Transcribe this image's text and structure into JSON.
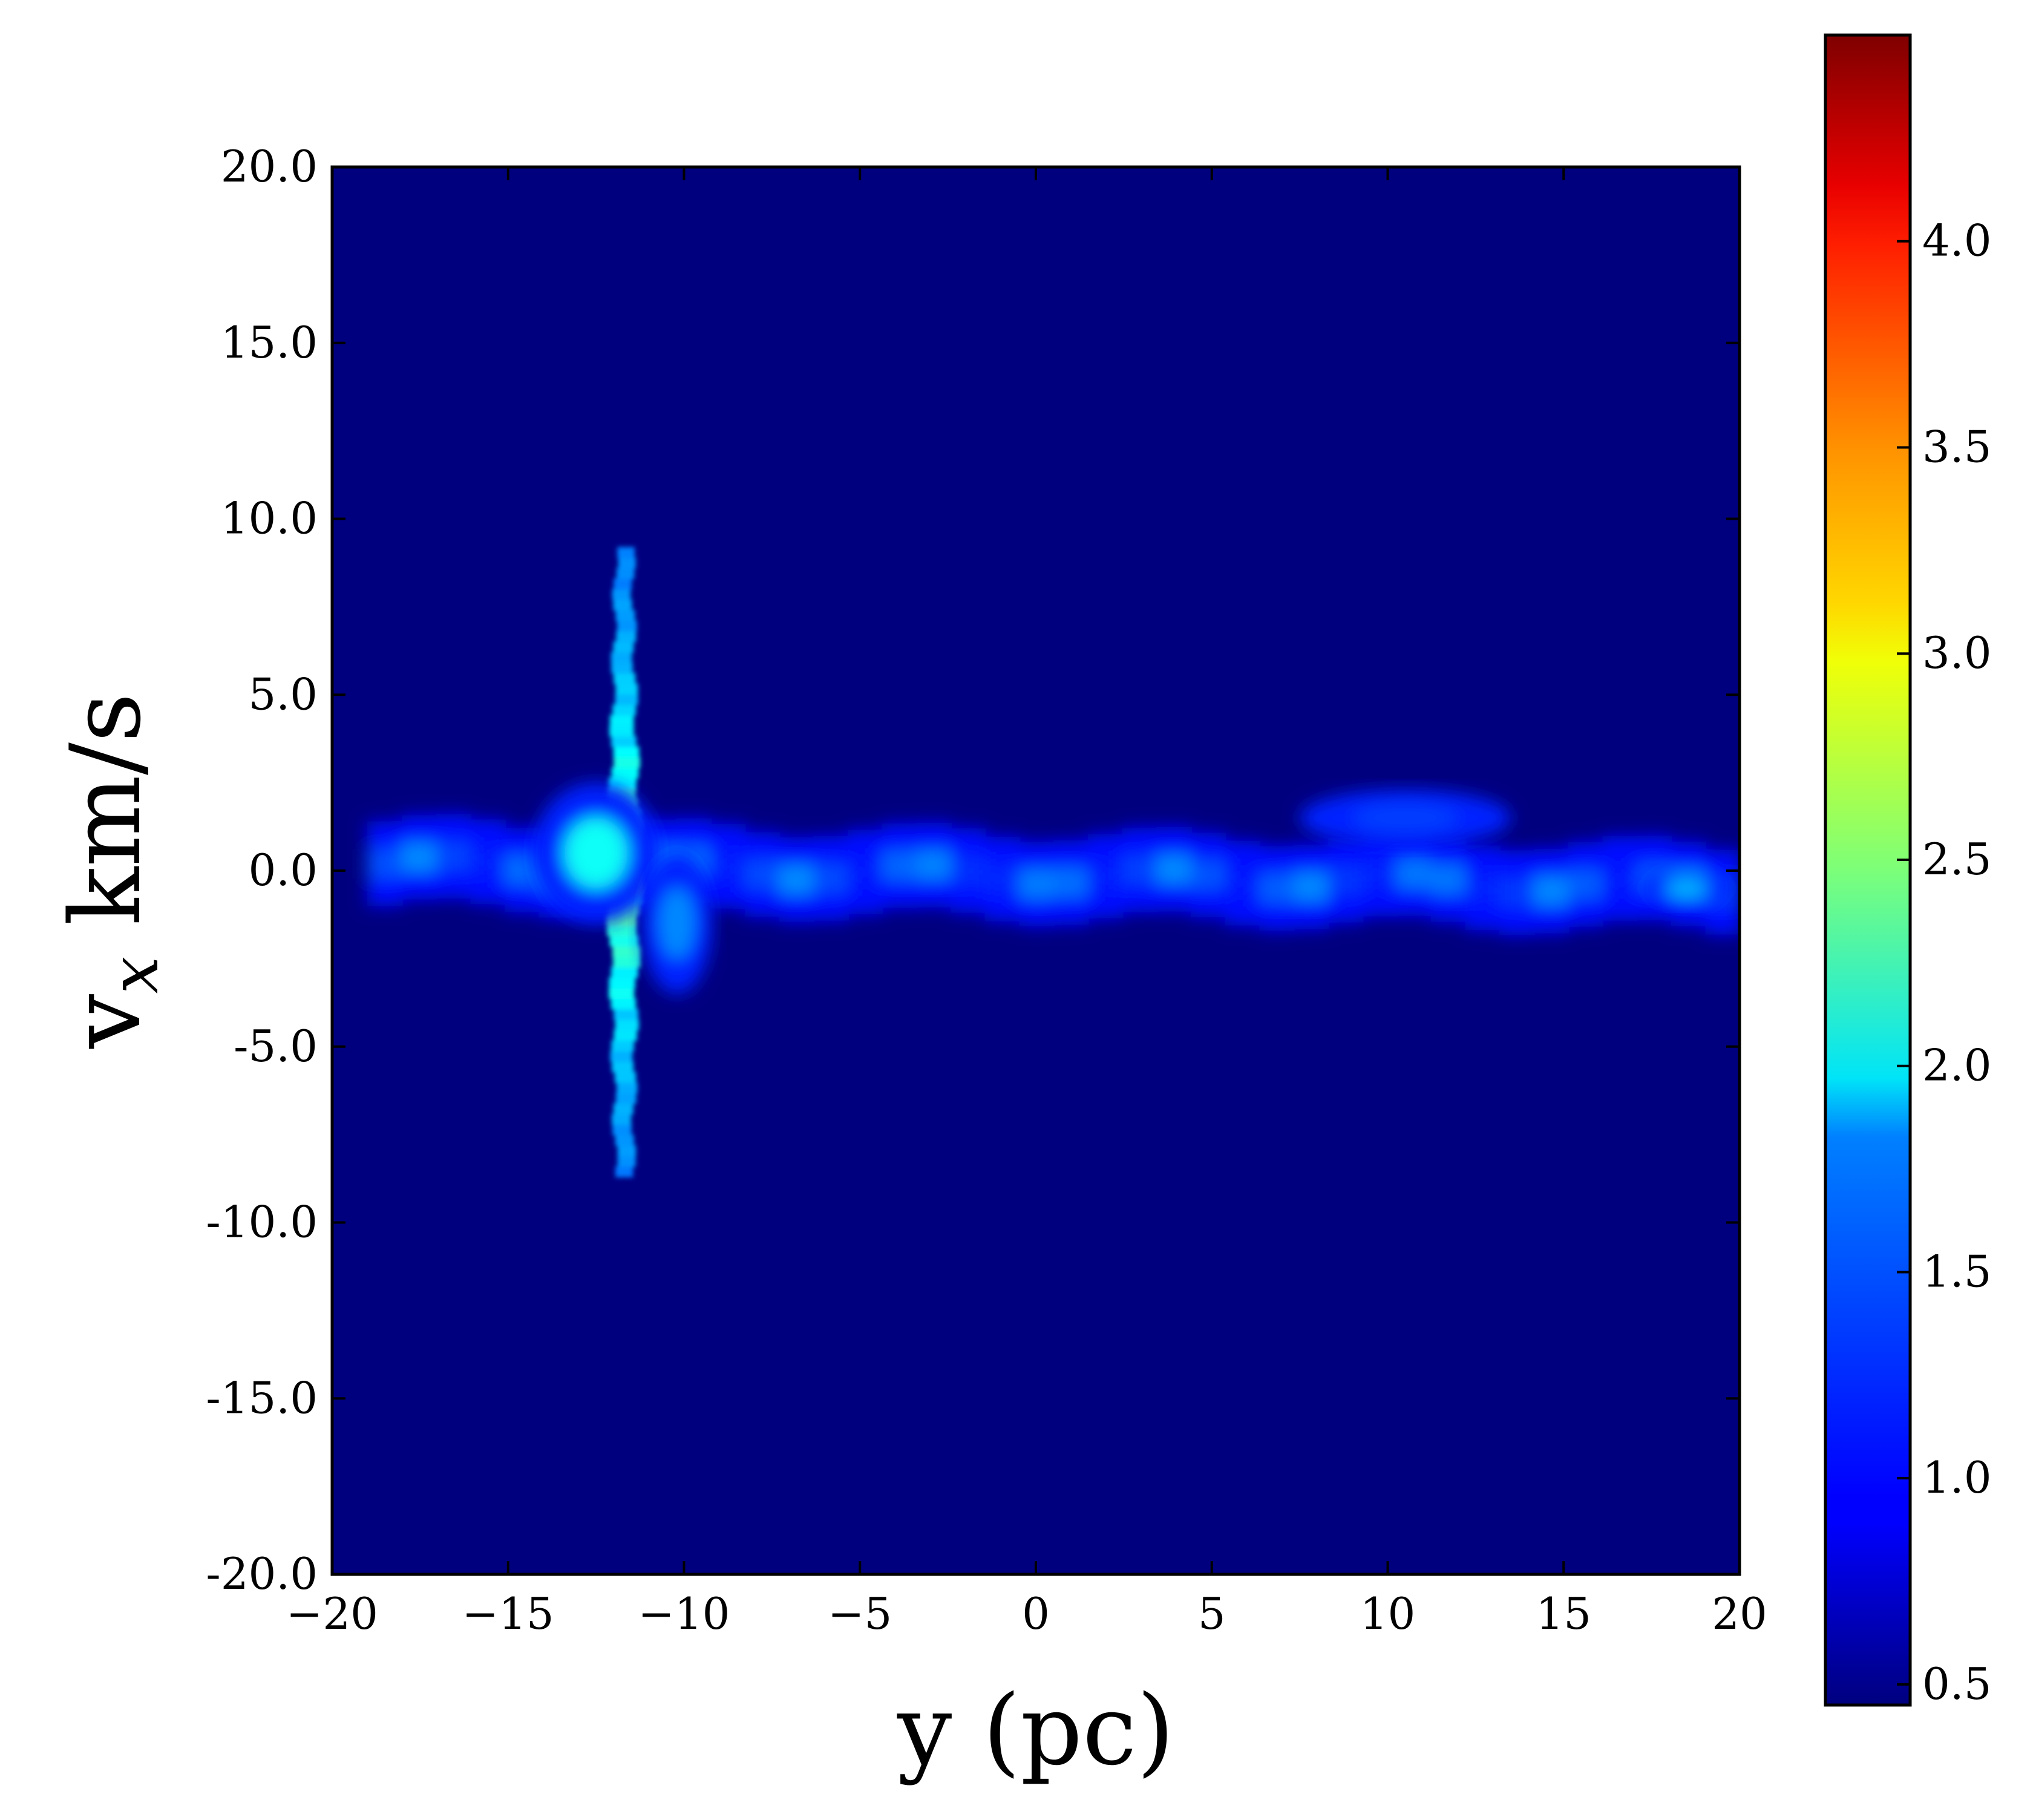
{
  "chart_data": {
    "type": "heatmap",
    "title": "",
    "xlabel": "y (pc)",
    "ylabel_main": "v",
    "ylabel_sub": "x",
    "ylabel_tail": " km/s",
    "xlim": [
      -20,
      20
    ],
    "ylim": [
      -20,
      20
    ],
    "x_ticks": [
      -20,
      -15,
      -10,
      -5,
      0,
      5,
      10,
      15,
      20
    ],
    "x_tick_labels": [
      "−20",
      "−15",
      "−10",
      "−5",
      "0",
      "5",
      "10",
      "15",
      "20"
    ],
    "y_ticks": [
      20,
      15,
      10,
      5,
      0,
      -5,
      -10,
      -15,
      -20
    ],
    "y_tick_labels": [
      "20.0",
      "15.0",
      "10.0",
      "5.0",
      "0.0",
      "-5.0",
      "-10.0",
      "-15.0",
      "-20.0"
    ],
    "colormap": "jet",
    "colorbar": {
      "range": [
        0.45,
        4.5
      ],
      "ticks": [
        4.0,
        3.5,
        3.0,
        2.5,
        2.0,
        1.5,
        1.0,
        0.5
      ],
      "tick_labels": [
        "4.0",
        "3.5",
        "3.0",
        "2.5",
        "2.0",
        "1.5",
        "1.0",
        "0.5"
      ]
    },
    "background_value": 0.5,
    "features": [
      {
        "type": "filament",
        "x_range": [
          -19,
          20
        ],
        "y_center_start": 0.2,
        "y_center_end": -0.5,
        "width": 1.2,
        "peak_value": 1.5
      },
      {
        "type": "vertical_spike",
        "x": -11.7,
        "y_range": [
          -8.7,
          9.2
        ],
        "peak_value": 2.6
      },
      {
        "type": "blob",
        "x": -12.5,
        "y": 0.5,
        "width_x": 1.8,
        "width_y": 2.0,
        "peak_value": 2.0
      },
      {
        "type": "blob",
        "x": -10.2,
        "y": -1.5,
        "width_x": 1.0,
        "width_y": 2.0,
        "peak_value": 1.5
      },
      {
        "type": "blob",
        "x": 18.5,
        "y": -0.5,
        "width_x": 1.2,
        "width_y": 0.5,
        "peak_value": 1.7
      },
      {
        "type": "blob",
        "x": 10.5,
        "y": 1.5,
        "width_x": 3.0,
        "width_y": 0.8,
        "peak_value": 1.2
      }
    ]
  }
}
